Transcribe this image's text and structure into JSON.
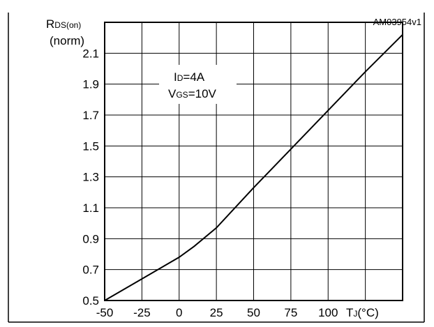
{
  "figure_ref": "AM03954v1",
  "chart_data": {
    "type": "line",
    "ylabel": {
      "main": "R",
      "sub": "DS(on)",
      "line2": "(norm)"
    },
    "xlabel": {
      "main": "T",
      "sub": "J",
      "unit": "(°C)"
    },
    "annotation": [
      {
        "main": "I",
        "sub": "D",
        "rest": "=4A"
      },
      {
        "main": "V",
        "sub": "GS",
        "rest": "=10V"
      }
    ],
    "xlim": [
      -50,
      150
    ],
    "ylim": [
      0.5,
      2.3
    ],
    "x_ticks": [
      -50,
      -25,
      0,
      25,
      50,
      75,
      100
    ],
    "x_tick_labels": [
      "-50",
      "-25",
      "0",
      "25",
      "50",
      "75",
      "100"
    ],
    "y_ticks": [
      0.5,
      0.7,
      0.9,
      1.1,
      1.3,
      1.5,
      1.7,
      1.9,
      2.1
    ],
    "y_tick_labels": [
      "0.5",
      "0.7",
      "0.9",
      "1.1",
      "1.3",
      "1.5",
      "1.7",
      "1.9",
      "2.1"
    ],
    "grid": true,
    "series": [
      {
        "x": [
          -50,
          -25,
          0,
          10,
          25,
          50,
          75,
          100,
          125,
          150
        ],
        "y": [
          0.5,
          0.64,
          0.78,
          0.85,
          0.97,
          1.23,
          1.48,
          1.73,
          1.98,
          2.22
        ]
      }
    ]
  }
}
